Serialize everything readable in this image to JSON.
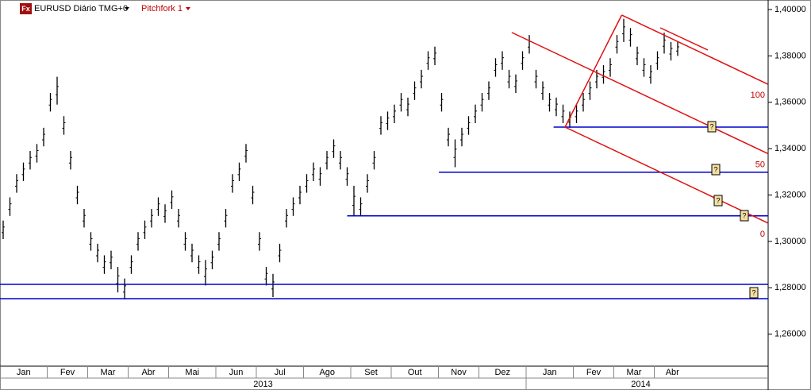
{
  "chart_data": {
    "type": "ohlc",
    "title": "EURUSD Diário TMG+0",
    "tool": "Pitchfork 1",
    "icon": "Fx",
    "ylim": [
      1.2462,
      1.4041
    ],
    "yticks": [
      {
        "value": 1.26,
        "label": "1,26000"
      },
      {
        "value": 1.28,
        "label": "1,28000"
      },
      {
        "value": 1.3,
        "label": "1,30000"
      },
      {
        "value": 1.32,
        "label": "1,32000"
      },
      {
        "value": 1.34,
        "label": "1,34000"
      },
      {
        "value": 1.36,
        "label": "1,36000"
      },
      {
        "value": 1.38,
        "label": "1,38000"
      },
      {
        "value": 1.4,
        "label": "1,40000"
      }
    ],
    "high": [
      1.309,
      1.319,
      1.329,
      1.334,
      1.339,
      1.342,
      1.349,
      1.364,
      1.371,
      1.354,
      1.339,
      1.324,
      1.314,
      1.304,
      1.299,
      1.294,
      1.296,
      1.289,
      1.284,
      1.294,
      1.304,
      1.309,
      1.314,
      1.319,
      1.316,
      1.322,
      1.314,
      1.304,
      1.299,
      1.294,
      1.292,
      1.296,
      1.304,
      1.314,
      1.329,
      1.334,
      1.342,
      1.324,
      1.304,
      1.289,
      1.286,
      1.299,
      1.314,
      1.319,
      1.324,
      1.329,
      1.334,
      1.332,
      1.339,
      1.344,
      1.339,
      1.332,
      1.324,
      1.319,
      1.329,
      1.339,
      1.354,
      1.356,
      1.359,
      1.364,
      1.362,
      1.369,
      1.374,
      1.382,
      1.384,
      1.364,
      1.349,
      1.344,
      1.349,
      1.354,
      1.359,
      1.364,
      1.369,
      1.379,
      1.382,
      1.374,
      1.372,
      1.382,
      1.389,
      1.374,
      1.369,
      1.364,
      1.362,
      1.359,
      1.356,
      1.359,
      1.364,
      1.369,
      1.374,
      1.376,
      1.379,
      1.389,
      1.396,
      1.392,
      1.384,
      1.379,
      1.376,
      1.382,
      1.39,
      1.386,
      1.386
    ],
    "low": [
      1.301,
      1.311,
      1.321,
      1.326,
      1.331,
      1.334,
      1.341,
      1.356,
      1.359,
      1.346,
      1.331,
      1.316,
      1.306,
      1.296,
      1.291,
      1.286,
      1.288,
      1.278,
      1.275,
      1.286,
      1.296,
      1.301,
      1.306,
      1.311,
      1.308,
      1.314,
      1.306,
      1.296,
      1.291,
      1.286,
      1.281,
      1.288,
      1.296,
      1.306,
      1.321,
      1.326,
      1.334,
      1.316,
      1.296,
      1.281,
      1.276,
      1.291,
      1.306,
      1.311,
      1.316,
      1.321,
      1.326,
      1.324,
      1.331,
      1.336,
      1.331,
      1.324,
      1.311,
      1.311,
      1.321,
      1.331,
      1.346,
      1.348,
      1.351,
      1.356,
      1.354,
      1.361,
      1.366,
      1.374,
      1.376,
      1.356,
      1.341,
      1.332,
      1.341,
      1.346,
      1.351,
      1.356,
      1.361,
      1.371,
      1.374,
      1.366,
      1.364,
      1.374,
      1.381,
      1.366,
      1.361,
      1.356,
      1.354,
      1.351,
      1.349,
      1.351,
      1.356,
      1.361,
      1.366,
      1.368,
      1.371,
      1.381,
      1.386,
      1.384,
      1.376,
      1.371,
      1.368,
      1.374,
      1.381,
      1.378,
      1.38
    ],
    "months": [
      {
        "label": "Jan",
        "start": 0
      },
      {
        "label": "Fev",
        "start": 7
      },
      {
        "label": "Mar",
        "start": 13
      },
      {
        "label": "Abr",
        "start": 19
      },
      {
        "label": "Mai",
        "start": 25
      },
      {
        "label": "Jun",
        "start": 32
      },
      {
        "label": "Jul",
        "start": 38
      },
      {
        "label": "Ago",
        "start": 45
      },
      {
        "label": "Set",
        "start": 52
      },
      {
        "label": "Out",
        "start": 58
      },
      {
        "label": "Nov",
        "start": 65
      },
      {
        "label": "Dez",
        "start": 71
      },
      {
        "label": "Jan",
        "start": 78
      },
      {
        "label": "Fev",
        "start": 85
      },
      {
        "label": "Mar",
        "start": 91
      },
      {
        "label": "Abr",
        "start": 97
      }
    ],
    "years": [
      {
        "label": "2013",
        "start": 0,
        "end": 78
      },
      {
        "label": "2014",
        "start": 78,
        "end": 112
      }
    ],
    "hlines": [
      {
        "value": 1.3493,
        "start": 81.6
      },
      {
        "value": 1.3298,
        "start": 64.6
      },
      {
        "value": 1.311,
        "start": 51
      },
      {
        "value": 1.2815,
        "start": -1
      },
      {
        "value": 1.2753,
        "start": -1
      }
    ],
    "pitchfork": {
      "points": [
        {
          "index": 75.4,
          "price": 1.3901
        },
        {
          "index": 91.7,
          "price": 1.3976
        },
        {
          "index": 83.3,
          "price": 1.3493
        }
      ],
      "levels": [
        "100",
        "50",
        "0"
      ]
    },
    "bar_color": "#000000",
    "hline_color": "#0000cc",
    "pitchfork_color": "#e01010"
  }
}
